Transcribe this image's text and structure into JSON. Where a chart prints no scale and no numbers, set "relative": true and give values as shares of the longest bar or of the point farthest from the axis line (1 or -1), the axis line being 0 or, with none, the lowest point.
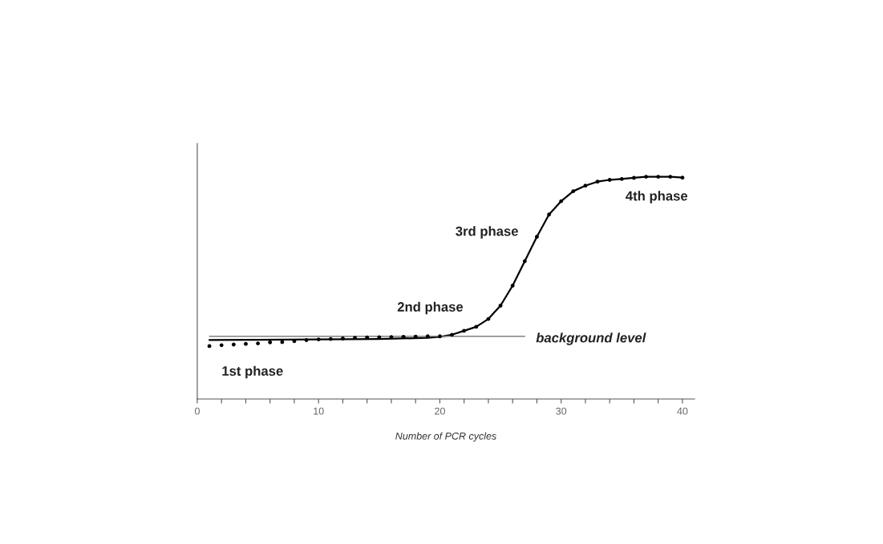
{
  "chart_data": {
    "type": "scatter",
    "relative": true,
    "xlabel": "Number of PCR cycles",
    "x": [
      1,
      2,
      3,
      4,
      5,
      6,
      7,
      8,
      9,
      10,
      11,
      12,
      13,
      14,
      15,
      16,
      17,
      18,
      19,
      20,
      21,
      22,
      23,
      24,
      25,
      26,
      27,
      28,
      29,
      30,
      31,
      32,
      33,
      34,
      35,
      36,
      37,
      38,
      39,
      40
    ],
    "xlim": [
      0,
      41
    ],
    "xticks": [
      0,
      {
        "value": 2,
        "label": null
      },
      {
        "value": 4,
        "label": null
      },
      {
        "value": 6,
        "label": null
      },
      {
        "value": 8,
        "label": null
      },
      10,
      {
        "value": 12,
        "label": null
      },
      {
        "value": 14,
        "label": null
      },
      {
        "value": 16,
        "label": null
      },
      {
        "value": 18,
        "label": null
      },
      20,
      {
        "value": 22,
        "label": null
      },
      {
        "value": 24,
        "label": null
      },
      {
        "value": 26,
        "label": null
      },
      {
        "value": 28,
        "label": null
      },
      30,
      {
        "value": 32,
        "label": null
      },
      {
        "value": 34,
        "label": null
      },
      {
        "value": 36,
        "label": null
      },
      {
        "value": 38,
        "label": null
      },
      40
    ],
    "tick_labels": "x",
    "grid": false,
    "legend": false,
    "series": [
      {
        "color": "#000000",
        "marker": "circle",
        "values": [
          0.238,
          0.242,
          0.245,
          0.248,
          0.25,
          0.255,
          0.256,
          0.26,
          0.265,
          0.268,
          0.27,
          0.272,
          0.275,
          0.277,
          0.278,
          0.279,
          0.28,
          0.281,
          0.282,
          0.282,
          0.289,
          0.307,
          0.325,
          0.36,
          0.42,
          0.51,
          0.62,
          0.73,
          0.83,
          0.89,
          0.935,
          0.96,
          0.978,
          0.986,
          0.99,
          0.995,
          1,
          1,
          1,
          0.996
        ]
      },
      {
        "type": "line",
        "color": "#000000",
        "marker": "none",
        "line_style": "solid",
        "x": [
          1,
          5,
          10,
          15,
          19,
          20,
          21,
          22,
          23,
          24,
          25,
          26,
          27,
          28,
          29,
          30,
          31,
          32,
          33,
          34,
          35,
          36,
          37,
          38,
          39,
          40
        ],
        "values": [
          0.265,
          0.266,
          0.268,
          0.27,
          0.275,
          0.28,
          0.289,
          0.307,
          0.325,
          0.36,
          0.42,
          0.51,
          0.62,
          0.73,
          0.83,
          0.89,
          0.935,
          0.96,
          0.978,
          0.986,
          0.99,
          0.995,
          1,
          1,
          1,
          0.996
        ]
      },
      {
        "type": "line",
        "color": "#808080",
        "marker": "none",
        "line_style": "solid",
        "x": [
          1,
          27
        ],
        "values": [
          0.282,
          0.282
        ]
      }
    ],
    "annotations": [
      "1st phase",
      "2nd phase",
      "3rd phase",
      "4th phase",
      "background level"
    ]
  }
}
